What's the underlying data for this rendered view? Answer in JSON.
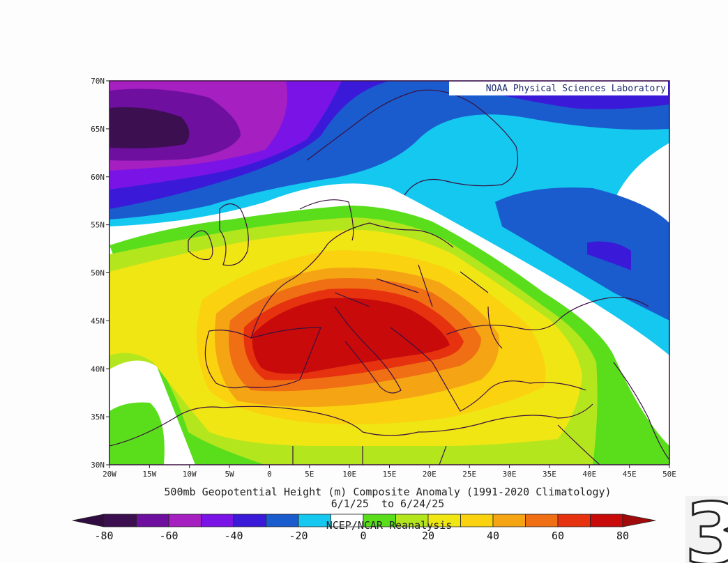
{
  "map": {
    "credit": "NOAA Physical Sciences Laboratory",
    "title_line1": "500mb Geopotential Height (m) Composite Anomaly (1991-2020 Climatology)",
    "title_line2": "6/1/25  to 6/24/25",
    "source": "NCEP/NCAR Reanalysis",
    "lat_ticks": [
      "70N",
      "65N",
      "60N",
      "55N",
      "50N",
      "45N",
      "40N",
      "35N",
      "30N"
    ],
    "lon_ticks": [
      "20W",
      "15W",
      "10W",
      "5W",
      "0",
      "5E",
      "10E",
      "15E",
      "20E",
      "25E",
      "30E",
      "35E",
      "40E",
      "45E",
      "50E"
    ],
    "extent": {
      "lon": [
        -20,
        50
      ],
      "lat": [
        30,
        70
      ]
    }
  },
  "colorbar": {
    "labels": [
      "-80",
      "-60",
      "-40",
      "-20",
      "0",
      "20",
      "40",
      "60",
      "80"
    ],
    "levels": [
      -80,
      -70,
      -60,
      -50,
      -40,
      -30,
      -20,
      -10,
      10,
      20,
      30,
      40,
      50,
      60,
      70,
      80
    ],
    "colors": [
      "#3b0f50",
      "#6e0fa0",
      "#a61fc0",
      "#7a14e6",
      "#3a1ad8",
      "#1a5ccd",
      "#14c8f0",
      "#ffffff",
      "#5ade1c",
      "#b4e61e",
      "#f0e614",
      "#fad20f",
      "#f5a514",
      "#f06e14",
      "#e6320f",
      "#c80a0a"
    ]
  },
  "chart_data": {
    "type": "heatmap",
    "title": "500mb Geopotential Height (m) Composite Anomaly (1991-2020 Climatology)",
    "subtitle": "6/1/25  to 6/24/25",
    "units": "m",
    "xlim": [
      -20,
      50
    ],
    "ylim": [
      30,
      70
    ],
    "centers": [
      {
        "lon": -16,
        "lat": 64,
        "value": -85
      },
      {
        "lon": 12,
        "lat": 43,
        "value": 90
      },
      {
        "lon": 41,
        "lat": 51,
        "value": -45
      },
      {
        "lon": 42,
        "lat": 66,
        "value": -30
      }
    ]
  },
  "logo": {
    "glyph": "3"
  }
}
